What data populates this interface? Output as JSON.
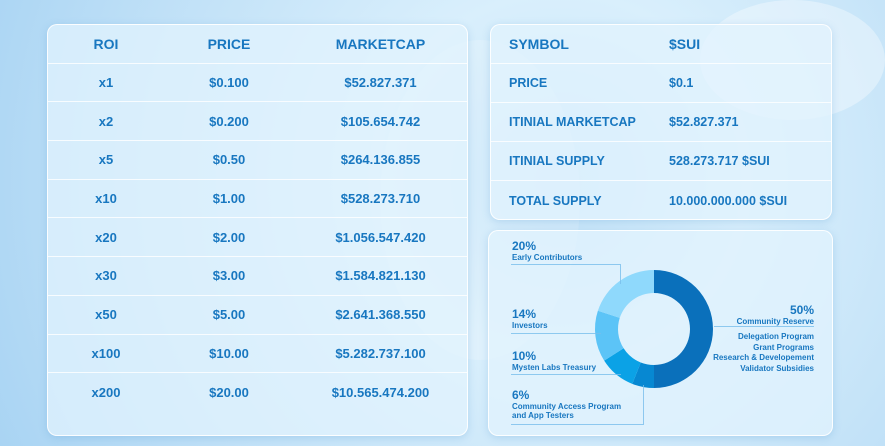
{
  "roi_table": {
    "headers": [
      "ROI",
      "PRICE",
      "MARKETCAP"
    ],
    "rows": [
      [
        "x1",
        "$0.100",
        "$52.827.371"
      ],
      [
        "x2",
        "$0.200",
        "$105.654.742"
      ],
      [
        "x5",
        "$0.50",
        "$264.136.855"
      ],
      [
        "x10",
        "$1.00",
        "$528.273.710"
      ],
      [
        "x20",
        "$2.00",
        "$1.056.547.420"
      ],
      [
        "x30",
        "$3.00",
        "$1.584.821.130"
      ],
      [
        "x50",
        "$5.00",
        "$2.641.368.550"
      ],
      [
        "x100",
        "$10.00",
        "$5.282.737.100"
      ],
      [
        "x200",
        "$20.00",
        "$10.565.474.200"
      ]
    ]
  },
  "token_info": {
    "rows": [
      [
        "SYMBOL",
        "$SUI"
      ],
      [
        "PRICE",
        "$0.1"
      ],
      [
        "ITINIAL MARKETCAP",
        "$52.827.371"
      ],
      [
        "ITINIAL SUPPLY",
        "528.273.717 $SUI"
      ],
      [
        "TOTAL SUPPLY",
        "10.000.000.000 $SUI"
      ]
    ]
  },
  "distribution": {
    "slices": [
      {
        "pct": "50%",
        "value": 50,
        "label": "Community Reserve",
        "color": "#0a70bb"
      },
      {
        "pct": "6%",
        "value": 6,
        "label": "Community Access Program and App Testers",
        "label_lines": [
          "Community Access Program",
          "and App Testers"
        ],
        "color": "#0788d2"
      },
      {
        "pct": "10%",
        "value": 10,
        "label": "Mysten Labs Treasury",
        "color": "#0ba2e6"
      },
      {
        "pct": "14%",
        "value": 14,
        "label": "Investors",
        "color": "#5cc4f7"
      },
      {
        "pct": "20%",
        "value": 20,
        "label": "Early Contributors",
        "color": "#8fd9fc"
      }
    ],
    "reserve_uses": [
      "Delegation Program",
      "Grant Programs",
      "Research & Developement",
      "Validator Subsidies"
    ]
  }
}
